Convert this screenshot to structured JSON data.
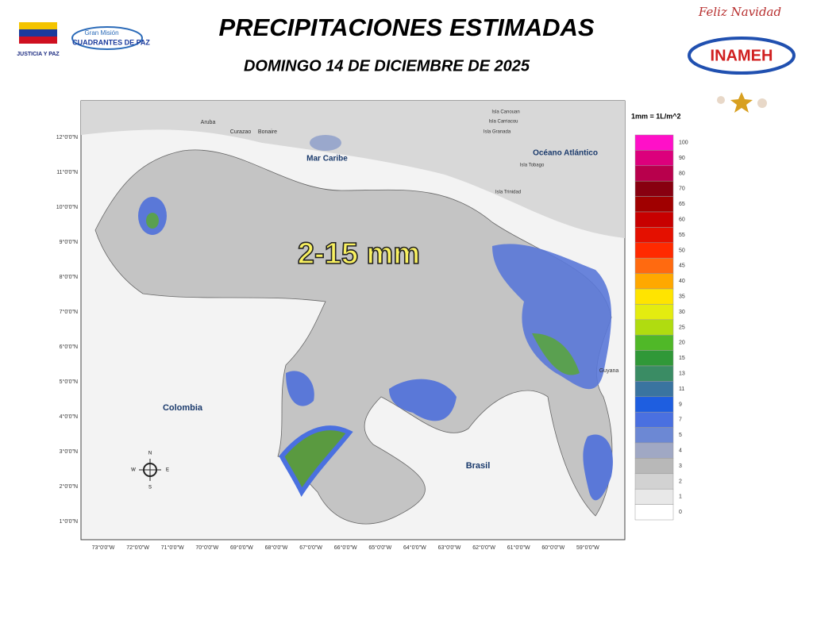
{
  "header": {
    "title": "PRECIPITACIONES ESTIMADAS",
    "date": "DOMINGO 14 DE DICIEMBRE DE 2025",
    "logos": {
      "justicia": "JUSTICIA Y PAZ",
      "mision": "Gran Misión",
      "cuadrantes": "CUADRANTES DE PAZ",
      "inameh": "INAMEH",
      "greeting": "Feliz Navidad"
    }
  },
  "map": {
    "highlight": "2-15 mm",
    "labels": [
      "Mar Caribe",
      "Océano Atlántico",
      "Colombia",
      "Brasil",
      "Guyana",
      "Aruba",
      "Curazao",
      "Bonaire",
      "Isla Canouan",
      "Isla Carriacou",
      "Isla Granada",
      "Isla Tobago",
      "Isla Trinidad"
    ],
    "compass": [
      "N",
      "S",
      "E",
      "W"
    ],
    "lat_labels": [
      "12°0'0\"N",
      "11°0'0\"N",
      "10°0'0\"N",
      "9°0'0\"N",
      "8°0'0\"N",
      "7°0'0\"N",
      "6°0'0\"N",
      "5°0'0\"N",
      "4°0'0\"N",
      "3°0'0\"N",
      "2°0'0\"N",
      "1°0'0\"N"
    ],
    "lon_labels": [
      "73°0'0\"W",
      "72°0'0\"W",
      "71°0'0\"W",
      "70°0'0\"W",
      "69°0'0\"W",
      "68°0'0\"W",
      "67°0'0\"W",
      "66°0'0\"W",
      "65°0'0\"W",
      "64°0'0\"W",
      "63°0'0\"W",
      "62°0'0\"W",
      "61°0'0\"W",
      "60°0'0\"W",
      "59°0'0\"W"
    ]
  },
  "legend": {
    "title": "1mm = 1L/m^2",
    "items": [
      {
        "label": "100",
        "color": "#ff10c8"
      },
      {
        "label": "90",
        "color": "#dc007c"
      },
      {
        "label": "80",
        "color": "#b8004c"
      },
      {
        "label": "70",
        "color": "#880010"
      },
      {
        "label": "65",
        "color": "#a00000"
      },
      {
        "label": "60",
        "color": "#c80000"
      },
      {
        "label": "55",
        "color": "#e41000"
      },
      {
        "label": "50",
        "color": "#ff2a00"
      },
      {
        "label": "45",
        "color": "#ff6a10"
      },
      {
        "label": "40",
        "color": "#ffa800"
      },
      {
        "label": "35",
        "color": "#ffe400"
      },
      {
        "label": "30",
        "color": "#e4ec10"
      },
      {
        "label": "25",
        "color": "#b0dc10"
      },
      {
        "label": "20",
        "color": "#50b828"
      },
      {
        "label": "15",
        "color": "#309838"
      },
      {
        "label": "13",
        "color": "#3a8c64"
      },
      {
        "label": "11",
        "color": "#3a74a0"
      },
      {
        "label": "9",
        "color": "#1e5ee0"
      },
      {
        "label": "7",
        "color": "#4a70e0"
      },
      {
        "label": "5",
        "color": "#6c88d4"
      },
      {
        "label": "4",
        "color": "#a0a8c4"
      },
      {
        "label": "3",
        "color": "#b8b8b8"
      },
      {
        "label": "2",
        "color": "#d2d2d2"
      },
      {
        "label": "1",
        "color": "#e8e8e8"
      },
      {
        "label": "0",
        "color": "#ffffff"
      }
    ]
  }
}
